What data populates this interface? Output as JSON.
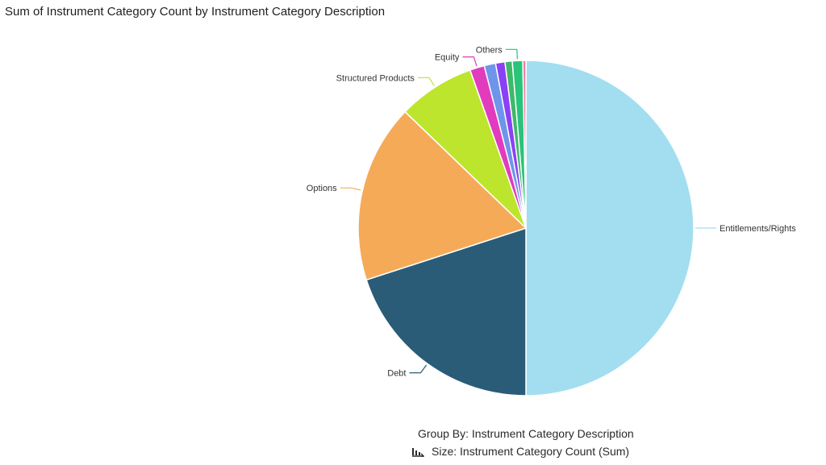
{
  "chart_data": {
    "type": "pie",
    "title": "Sum of Instrument Category Count by Instrument Category Description",
    "categories": [
      "Entitlements/Rights",
      "Debt",
      "Options",
      "Structured Products",
      "Equity",
      "",
      "",
      "",
      "Others",
      ""
    ],
    "values": [
      50.0,
      20.0,
      17.2,
      7.4,
      1.4,
      1.1,
      0.9,
      0.7,
      1.0,
      0.3
    ],
    "labels_shown": [
      "Entitlements/Rights",
      "Debt",
      "Options",
      "Structured Products",
      "Equity",
      "Others"
    ],
    "colors": [
      "#a2def0",
      "#2a5c78",
      "#f5aa58",
      "#bde52e",
      "#e03cbd",
      "#6e95ea",
      "#8a41f5",
      "#3fb86a",
      "#27c47a",
      "#f37aa0"
    ],
    "unit": "percent share (estimated)"
  },
  "field_info": {
    "group_by": "Group By: Instrument Category Description",
    "size": "Size: Instrument Category Count (Sum)",
    "size_icon": "chart-sort-icon"
  }
}
